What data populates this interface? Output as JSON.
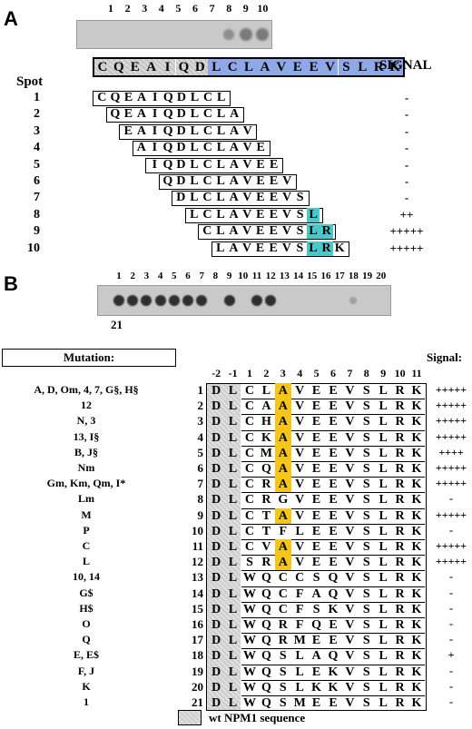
{
  "panelA": {
    "letter": "A",
    "blot_lanes": [
      "1",
      "2",
      "3",
      "4",
      "5",
      "6",
      "7",
      "8",
      "9",
      "10"
    ],
    "blot_spots": [
      0,
      0,
      0,
      0,
      0,
      0,
      0,
      1,
      2,
      2
    ],
    "sequence": [
      "C",
      "Q",
      "E",
      "A",
      "I",
      "Q",
      "D",
      "L",
      "C",
      "L",
      "A",
      "V",
      "E",
      "E",
      "V",
      "S",
      "L",
      "R",
      "K"
    ],
    "signal_label": "SIGNAL",
    "spot_label": "Spot",
    "peptides": [
      {
        "num": "1",
        "offset": 0,
        "seq": "CQEAIQDLCL",
        "signal": "-"
      },
      {
        "num": "2",
        "offset": 1,
        "seq": "QEAIQDLCLA",
        "signal": "-"
      },
      {
        "num": "3",
        "offset": 2,
        "seq": "EAIQDLCLAV",
        "signal": "-"
      },
      {
        "num": "4",
        "offset": 3,
        "seq": "AIQDLCLAVE",
        "signal": "-"
      },
      {
        "num": "5",
        "offset": 4,
        "seq": "IQDLCLAVEE",
        "signal": "-"
      },
      {
        "num": "6",
        "offset": 5,
        "seq": "QDLCLAVEEV",
        "signal": "-"
      },
      {
        "num": "7",
        "offset": 6,
        "seq": "DLCLAVEEVS",
        "signal": "-"
      },
      {
        "num": "8",
        "offset": 7,
        "seq": "LCLAVEEVSL",
        "signal": "++"
      },
      {
        "num": "9",
        "offset": 8,
        "seq": "CLAVEEVSLR",
        "signal": "+++++"
      },
      {
        "num": "10",
        "offset": 9,
        "seq": "LAVEEVSLRK",
        "signal": "+++++"
      }
    ],
    "highlight_color": "#48c8c8",
    "seq_highlight_color": "#8fa8e8"
  },
  "panelB": {
    "letter": "B",
    "blot_lanes": [
      "1",
      "2",
      "3",
      "4",
      "5",
      "6",
      "7",
      "8",
      "9",
      "10",
      "11",
      "12",
      "13",
      "14",
      "15",
      "16",
      "17",
      "18",
      "19",
      "20"
    ],
    "blot_spots": [
      2,
      2,
      2,
      2,
      2,
      2,
      2,
      0,
      2,
      0,
      2,
      2,
      0,
      0,
      0,
      0,
      0,
      1,
      0,
      0
    ],
    "extra_lane": "21",
    "mutation_header": "Mutation:",
    "signal_header": "Signal:",
    "positions": [
      "-2",
      "-1",
      "1",
      "2",
      "3",
      "4",
      "5",
      "6",
      "7",
      "8",
      "9",
      "10",
      "11"
    ],
    "rows": [
      {
        "mut": "A, D, Om, 4, 7, G§, H§",
        "num": "1",
        "seq": "DLCLAVEEVSLRK",
        "signal": "+++++"
      },
      {
        "mut": "12",
        "num": "2",
        "seq": "DLCAAVEEVSLRK",
        "signal": "+++++"
      },
      {
        "mut": "N, 3",
        "num": "3",
        "seq": "DLCHAVEEVSLRK",
        "signal": "+++++"
      },
      {
        "mut": "13, I§",
        "num": "4",
        "seq": "DLCKAVEEVSLRK",
        "signal": "+++++"
      },
      {
        "mut": "B, J§",
        "num": "5",
        "seq": "DLCMAVEEVSLRK",
        "signal": "++++"
      },
      {
        "mut": "Nm",
        "num": "6",
        "seq": "DLCQAVEEVSLRK",
        "signal": "+++++"
      },
      {
        "mut": "Gm, Km, Qm, I*",
        "num": "7",
        "seq": "DLCRAVEEVSLRK",
        "signal": "+++++"
      },
      {
        "mut": "Lm",
        "num": "8",
        "seq": "DLCRGVEEVSLRK",
        "signal": "-"
      },
      {
        "mut": "M",
        "num": "9",
        "seq": "DLCTAVEEVSLRK",
        "signal": "+++++"
      },
      {
        "mut": "P",
        "num": "10",
        "seq": "DLCTFLEEVSLRK",
        "signal": "-"
      },
      {
        "mut": "C",
        "num": "11",
        "seq": "DLCVAVEEVSLRK",
        "signal": "+++++"
      },
      {
        "mut": "L",
        "num": "12",
        "seq": "DLSRAVEEVSLRK",
        "signal": "+++++"
      },
      {
        "mut": "10, 14",
        "num": "13",
        "seq": "DLWQCCSQVSLRK",
        "signal": "-"
      },
      {
        "mut": "G$",
        "num": "14",
        "seq": "DLWQCFAQVSLRK",
        "signal": "-"
      },
      {
        "mut": "H$",
        "num": "15",
        "seq": "DLWQCFSKVSLRK",
        "signal": "-"
      },
      {
        "mut": "O",
        "num": "16",
        "seq": "DLWQRFQEVSLRK",
        "signal": "-"
      },
      {
        "mut": "Q",
        "num": "17",
        "seq": "DLWQRMEEVSLRK",
        "signal": "-"
      },
      {
        "mut": "E, E$",
        "num": "18",
        "seq": "DLWQSLAQVSLRK",
        "signal": "+"
      },
      {
        "mut": "F, J",
        "num": "19",
        "seq": "DLWQSLEKVSLRK",
        "signal": "-"
      },
      {
        "mut": "K",
        "num": "20",
        "seq": "DLWQSLKKVSLRK",
        "signal": "-"
      },
      {
        "mut": "1",
        "num": "21",
        "seq": "DLWQSMEEVSLRK",
        "signal": "-"
      }
    ],
    "alanine_color": "#f5c518",
    "legend": "wt NPM1 sequence"
  }
}
